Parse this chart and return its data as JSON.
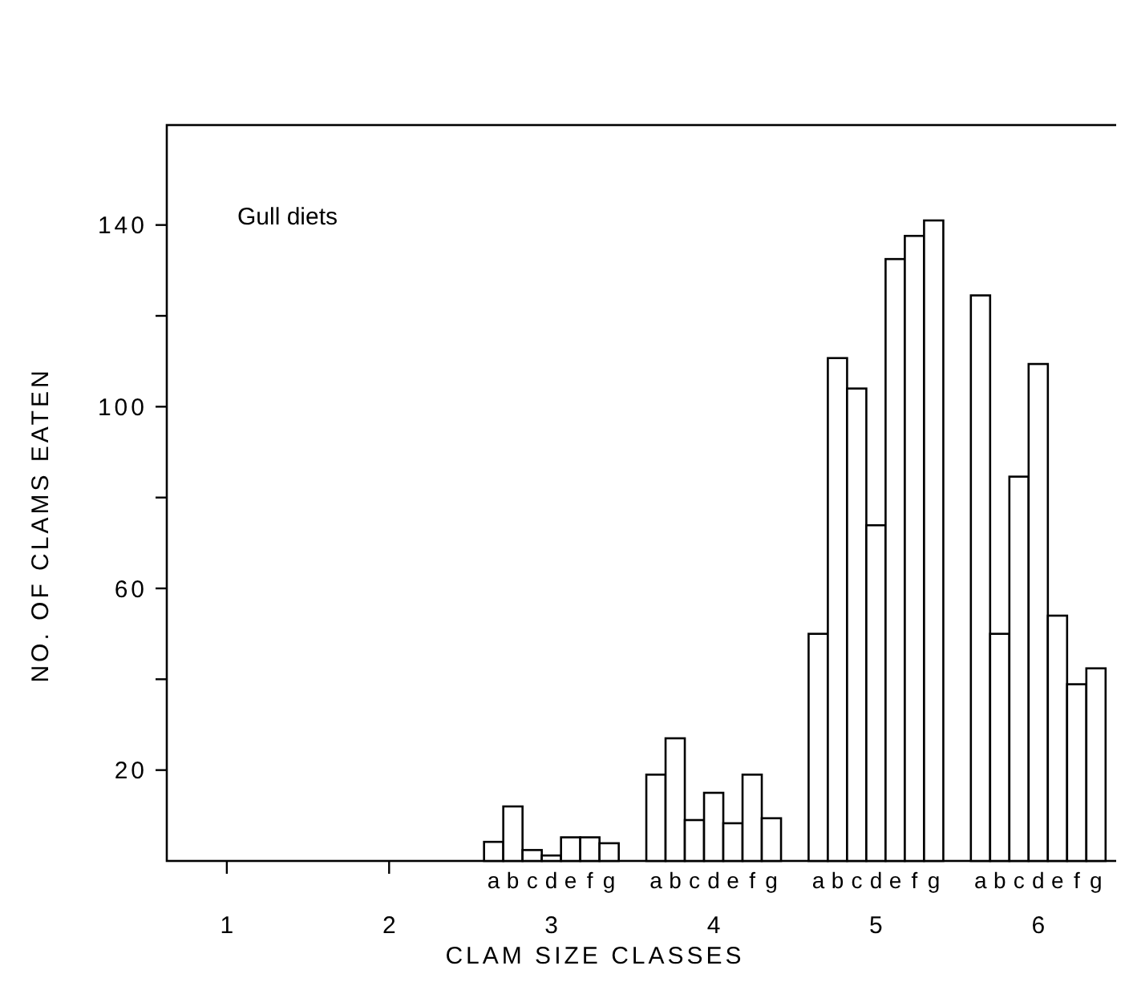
{
  "chart_data": {
    "type": "bar",
    "title": "Gull diets",
    "xlabel": "CLAM SIZE CLASSES",
    "ylabel": "NO. OF CLAMS EATEN",
    "categories": [
      "1",
      "2",
      "3",
      "4",
      "5",
      "6"
    ],
    "series": [
      {
        "name": "a",
        "color": "#ffffff",
        "values": [
          null,
          null,
          4.2,
          19,
          50,
          124.5
        ]
      },
      {
        "name": "b",
        "color": "#ffffff",
        "values": [
          null,
          null,
          12,
          27,
          110.7,
          50
        ]
      },
      {
        "name": "c",
        "color": "#ffffff",
        "values": [
          null,
          null,
          2.4,
          9,
          104,
          84.6
        ]
      },
      {
        "name": "d",
        "color": "#ffffff",
        "values": [
          null,
          null,
          1.2,
          15,
          73.9,
          109.4
        ]
      },
      {
        "name": "e",
        "color": "#ffffff",
        "values": [
          null,
          null,
          5.2,
          8.3,
          132.5,
          54
        ]
      },
      {
        "name": "f",
        "color": "#ffffff",
        "values": [
          null,
          null,
          5.2,
          19,
          137.6,
          38.9
        ]
      },
      {
        "name": "g",
        "color": "#ffffff",
        "values": [
          null,
          null,
          3.9,
          9.4,
          141,
          42.4
        ]
      }
    ],
    "ylim": [
      0,
      162
    ],
    "yticks": [
      20,
      {
        "value": 40,
        "label": null
      },
      60,
      {
        "value": 80,
        "label": null
      },
      100,
      {
        "value": 120,
        "label": null
      },
      140
    ],
    "grid": false
  }
}
